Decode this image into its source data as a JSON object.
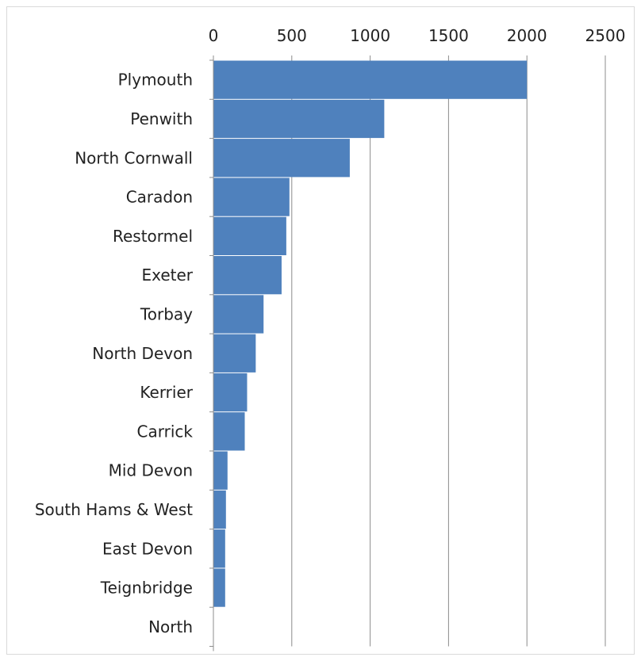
{
  "chart_data": {
    "type": "bar",
    "orientation": "horizontal",
    "categories": [
      "Plymouth",
      "Penwith",
      "North Cornwall",
      "Caradon",
      "Restormel",
      "Exeter",
      "Torbay",
      "North Devon",
      "Kerrier",
      "Carrick",
      "Mid Devon",
      "South Hams & West",
      "East Devon",
      "Teignbridge",
      "North"
    ],
    "values": [
      2000,
      1090,
      870,
      485,
      465,
      435,
      320,
      270,
      215,
      200,
      90,
      80,
      75,
      75,
      0
    ],
    "xlim": [
      0,
      2500
    ],
    "x_ticks": [
      "0",
      "500",
      "1000",
      "1500",
      "2000",
      "2500"
    ],
    "grid": true,
    "axis_position": "top",
    "bar_color": "#4f81bd",
    "grid_color": "#8c8c8c"
  }
}
